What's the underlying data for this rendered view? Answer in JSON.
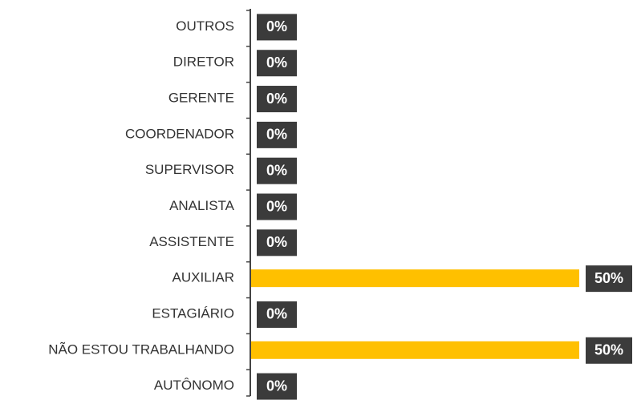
{
  "chart_data": {
    "type": "barh",
    "categories": [
      "OUTROS",
      "DIRETOR",
      "GERENTE",
      "COORDENADOR",
      "SUPERVISOR",
      "ANALISTA",
      "ASSISTENTE",
      "AUXILIAR",
      "ESTAGIÁRIO",
      "NÃO ESTOU TRABALHANDO",
      "AUTÔNOMO"
    ],
    "values": [
      0,
      0,
      0,
      0,
      0,
      0,
      0,
      50,
      0,
      50,
      0
    ],
    "value_labels": [
      "0%",
      "0%",
      "0%",
      "0%",
      "0%",
      "0%",
      "0%",
      "50%",
      "0%",
      "50%",
      "0%"
    ],
    "color": "#FFC000"
  }
}
